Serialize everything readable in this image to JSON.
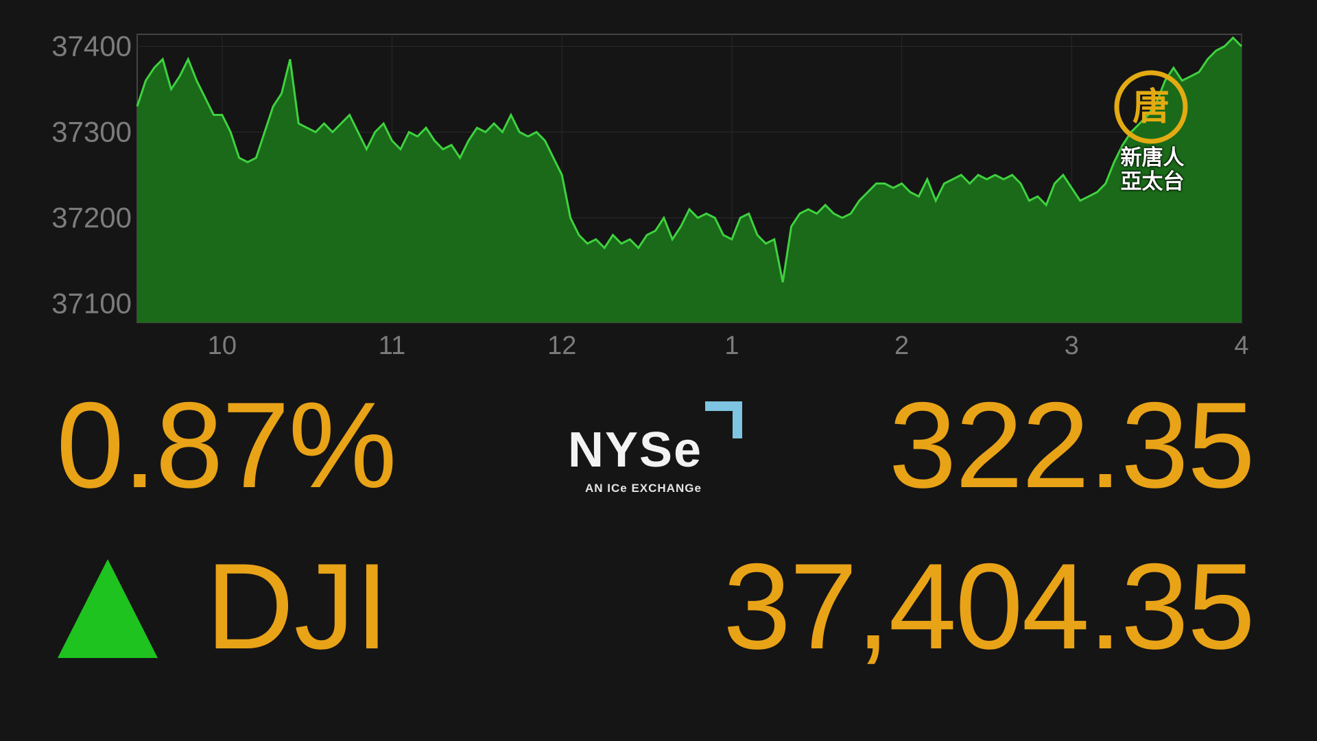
{
  "chart_data": {
    "type": "area",
    "title": "",
    "xlabel": "",
    "ylabel": "",
    "ylim": [
      37078,
      37414
    ],
    "xlim": [
      9.5,
      16.0
    ],
    "yticks": [
      37400,
      37300,
      37200,
      37100
    ],
    "yticklabels": [
      "37400",
      "37300",
      "37200",
      "37100"
    ],
    "xticks": [
      10,
      11,
      12,
      13,
      14,
      15,
      16
    ],
    "xticklabels": [
      "10",
      "11",
      "12",
      "1",
      "2",
      "3",
      "4"
    ],
    "grid": true,
    "legend": "none",
    "series": [
      {
        "x": [
          9.5,
          9.55,
          9.6,
          9.65,
          9.7,
          9.75,
          9.8,
          9.85,
          9.9,
          9.95,
          10.0,
          10.05,
          10.1,
          10.15,
          10.2,
          10.25,
          10.3,
          10.35,
          10.4,
          10.45,
          10.5,
          10.55,
          10.6,
          10.65,
          10.7,
          10.75,
          10.8,
          10.85,
          10.9,
          10.95,
          11.0,
          11.05,
          11.1,
          11.15,
          11.2,
          11.25,
          11.3,
          11.35,
          11.4,
          11.45,
          11.5,
          11.55,
          11.6,
          11.65,
          11.7,
          11.75,
          11.8,
          11.85,
          11.9,
          11.95,
          12.0,
          12.05,
          12.1,
          12.15,
          12.2,
          12.25,
          12.3,
          12.35,
          12.4,
          12.45,
          12.5,
          12.55,
          12.6,
          12.65,
          12.7,
          12.75,
          12.8,
          12.85,
          12.9,
          12.95,
          13.0,
          13.05,
          13.1,
          13.15,
          13.2,
          13.25,
          13.3,
          13.35,
          13.4,
          13.45,
          13.5,
          13.55,
          13.6,
          13.65,
          13.7,
          13.75,
          13.8,
          13.85,
          13.9,
          13.95,
          14.0,
          14.05,
          14.1,
          14.15,
          14.2,
          14.25,
          14.3,
          14.35,
          14.4,
          14.45,
          14.5,
          14.55,
          14.6,
          14.65,
          14.7,
          14.75,
          14.8,
          14.85,
          14.9,
          14.95,
          15.0,
          15.05,
          15.1,
          15.15,
          15.2,
          15.25,
          15.3,
          15.35,
          15.4,
          15.45,
          15.5,
          15.55,
          15.6,
          15.65,
          15.7,
          15.75,
          15.8,
          15.85,
          15.9,
          15.95,
          16.0
        ],
        "y": [
          37330,
          37360,
          37375,
          37385,
          37350,
          37365,
          37385,
          37360,
          37340,
          37320,
          37320,
          37300,
          37270,
          37265,
          37270,
          37300,
          37330,
          37345,
          37385,
          37310,
          37305,
          37300,
          37310,
          37300,
          37310,
          37320,
          37300,
          37280,
          37300,
          37310,
          37290,
          37280,
          37300,
          37295,
          37305,
          37290,
          37280,
          37285,
          37270,
          37290,
          37305,
          37300,
          37310,
          37300,
          37320,
          37300,
          37295,
          37300,
          37290,
          37270,
          37250,
          37200,
          37180,
          37170,
          37175,
          37165,
          37180,
          37170,
          37175,
          37165,
          37180,
          37185,
          37200,
          37175,
          37190,
          37210,
          37200,
          37205,
          37200,
          37180,
          37175,
          37200,
          37205,
          37180,
          37170,
          37175,
          37125,
          37190,
          37205,
          37210,
          37205,
          37215,
          37205,
          37200,
          37205,
          37220,
          37230,
          37240,
          37240,
          37235,
          37240,
          37230,
          37225,
          37245,
          37220,
          37240,
          37245,
          37250,
          37240,
          37250,
          37245,
          37250,
          37245,
          37250,
          37240,
          37220,
          37225,
          37215,
          37240,
          37250,
          37235,
          37220,
          37225,
          37230,
          37240,
          37265,
          37285,
          37300,
          37310,
          37320,
          37335,
          37360,
          37375,
          37360,
          37365,
          37370,
          37385,
          37395,
          37400,
          37410,
          37400
        ]
      }
    ]
  },
  "stats": {
    "change_percent": "0.87%",
    "point_change": "322.35",
    "ticker": "DJI",
    "index_value": "37,404.35",
    "direction": "up"
  },
  "exchange_logo": {
    "name": "NYSe",
    "tagline": "AN ICe EXCHANGe"
  },
  "station_logo": {
    "emblem_char": "唐",
    "line1": "新唐人",
    "line2": "亞太台"
  },
  "colors": {
    "background": "#151515",
    "area_fill": "#1a6a1a",
    "area_line": "#3fd23f",
    "numbers": "#e9a317",
    "up_arrow": "#1fc31f",
    "nyse_corner": "#7fc4e2",
    "station_gold": "#e3ab12"
  }
}
